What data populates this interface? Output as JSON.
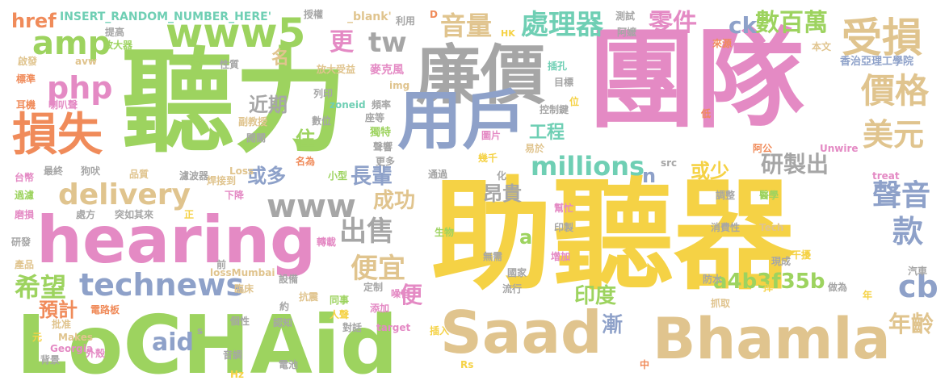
{
  "palette": {
    "green": "#9dd35f",
    "gold": "#f5d245",
    "pink": "#e48ac4",
    "tan": "#e0c48e",
    "blue": "#8ea1c9",
    "gray": "#a6a6a6",
    "orange": "#f08b5a",
    "teal": "#6fcfb4"
  },
  "words": [
    {
      "text": "團隊",
      "color": "pink"
    },
    {
      "text": "助聽器",
      "color": "gold"
    },
    {
      "text": "聽力",
      "color": "green"
    },
    {
      "text": "LoCHAid",
      "color": "green"
    },
    {
      "text": "hearing",
      "color": "pink"
    },
    {
      "text": "Saad",
      "color": "tan"
    },
    {
      "text": "Bhamla",
      "color": "tan"
    },
    {
      "text": "廉價",
      "color": "gray"
    },
    {
      "text": "用戶",
      "color": "blue"
    },
    {
      "text": "www5",
      "color": "green"
    },
    {
      "text": "損失",
      "color": "orange"
    },
    {
      "text": "amp",
      "color": "green"
    },
    {
      "text": "php",
      "color": "pink"
    },
    {
      "text": "delivery",
      "color": "tan"
    },
    {
      "text": "technews",
      "color": "blue"
    },
    {
      "text": "www",
      "color": "gray"
    },
    {
      "text": "受損",
      "color": "tan"
    },
    {
      "text": "價格",
      "color": "tan"
    },
    {
      "text": "美元",
      "color": "tan"
    },
    {
      "text": "tw",
      "color": "gray"
    },
    {
      "text": "音量",
      "color": "tan"
    },
    {
      "text": "處理器",
      "color": "teal"
    },
    {
      "text": "零件",
      "color": "pink"
    },
    {
      "text": "ck",
      "color": "blue"
    },
    {
      "text": "數百萬",
      "color": "green"
    },
    {
      "text": "聲音",
      "color": "blue"
    },
    {
      "text": "款",
      "color": "blue"
    },
    {
      "text": "cb",
      "color": "blue"
    },
    {
      "text": "年齡",
      "color": "tan"
    },
    {
      "text": "a4b3f35b",
      "color": "green"
    },
    {
      "text": "millions",
      "color": "teal"
    },
    {
      "text": "研製出",
      "color": "gray"
    },
    {
      "text": "出售",
      "color": "gray"
    },
    {
      "text": "便宜",
      "color": "tan"
    },
    {
      "text": "希望",
      "color": "green"
    },
    {
      "text": "預計",
      "color": "orange"
    },
    {
      "text": "aid",
      "color": "blue"
    },
    {
      "text": "成功",
      "color": "tan"
    },
    {
      "text": "昂貴",
      "color": "gray"
    },
    {
      "text": "印度",
      "color": "green"
    },
    {
      "text": "漸",
      "color": "blue"
    },
    {
      "text": "長輩",
      "color": "blue"
    },
    {
      "text": "或多",
      "color": "blue"
    },
    {
      "text": "或少",
      "color": "gold"
    },
    {
      "text": "工程",
      "color": "teal"
    },
    {
      "text": "近期",
      "color": "gray"
    },
    {
      "text": "更",
      "color": "pink"
    },
    {
      "text": "住",
      "color": "green"
    },
    {
      "text": "名",
      "color": "tan"
    },
    {
      "text": "便",
      "color": "pink"
    },
    {
      "text": "a",
      "color": "green"
    },
    {
      "text": "n",
      "color": "blue"
    },
    {
      "text": "href",
      "color": "orange"
    },
    {
      "text": "INSERT_RANDOM_NUMBER_HERE'",
      "color": "teal"
    },
    {
      "text": "_blank'",
      "color": "tan"
    },
    {
      "text": "授權",
      "color": "gray"
    },
    {
      "text": "利用",
      "color": "gray"
    },
    {
      "text": "D",
      "color": "orange"
    },
    {
      "text": "HK",
      "color": "gold"
    },
    {
      "text": "測試",
      "color": "gray"
    },
    {
      "text": "阿嬤",
      "color": "gray"
    },
    {
      "text": "來源",
      "color": "orange"
    },
    {
      "text": "本文",
      "color": "tan"
    },
    {
      "text": "香治亞理工學院",
      "color": "blue"
    },
    {
      "text": "提高",
      "color": "gray"
    },
    {
      "text": "放大器",
      "color": "green"
    },
    {
      "text": "啟發",
      "color": "tan"
    },
    {
      "text": "avw",
      "color": "tan"
    },
    {
      "text": "電子",
      "color": "green"
    },
    {
      "text": "性質",
      "color": "gray"
    },
    {
      "text": "放大受益",
      "color": "tan"
    },
    {
      "text": "麥克風",
      "color": "pink"
    },
    {
      "text": "插孔",
      "color": "teal"
    },
    {
      "text": "目標",
      "color": "gray"
    },
    {
      "text": "標準",
      "color": "orange"
    },
    {
      "text": "img",
      "color": "tan"
    },
    {
      "text": "耳機",
      "color": "orange"
    },
    {
      "text": "喇叭聲",
      "color": "pink"
    },
    {
      "text": "zoneid",
      "color": "teal"
    },
    {
      "text": "列印",
      "color": "gray"
    },
    {
      "text": "頻率",
      "color": "gray"
    },
    {
      "text": "控制鍵",
      "color": "gray"
    },
    {
      "text": "副教授",
      "color": "tan"
    },
    {
      "text": "座等",
      "color": "gray"
    },
    {
      "text": "數位",
      "color": "gray"
    },
    {
      "text": "開關",
      "color": "gray"
    },
    {
      "text": "獨特",
      "color": "green"
    },
    {
      "text": "聲響",
      "color": "gray"
    },
    {
      "text": "圖片",
      "color": "pink"
    },
    {
      "text": "幾千",
      "color": "gold"
    },
    {
      "text": "易於",
      "color": "tan"
    },
    {
      "text": "阿公",
      "color": "orange"
    },
    {
      "text": "Unwire",
      "color": "pink"
    },
    {
      "text": "低",
      "color": "orange"
    },
    {
      "text": "台幣",
      "color": "pink"
    },
    {
      "text": "最終",
      "color": "gray"
    },
    {
      "text": "狗吠",
      "color": "gray"
    },
    {
      "text": "品質",
      "color": "tan"
    },
    {
      "text": "濾波器",
      "color": "gray"
    },
    {
      "text": "Loss",
      "color": "tan"
    },
    {
      "text": "焊接到",
      "color": "tan"
    },
    {
      "text": "名為",
      "color": "orange"
    },
    {
      "text": "更多",
      "color": "gray"
    },
    {
      "text": "小型",
      "color": "green"
    },
    {
      "text": "通過",
      "color": "gray"
    },
    {
      "text": "化",
      "color": "gray"
    },
    {
      "text": "src",
      "color": "gray"
    },
    {
      "text": "treat",
      "color": "pink"
    },
    {
      "text": "過濾",
      "color": "green"
    },
    {
      "text": "下降",
      "color": "pink"
    },
    {
      "text": "調整",
      "color": "gray"
    },
    {
      "text": "醫學",
      "color": "green"
    },
    {
      "text": "磨損",
      "color": "pink"
    },
    {
      "text": "處方",
      "color": "gray"
    },
    {
      "text": "突如其來",
      "color": "gray"
    },
    {
      "text": "正",
      "color": "gold"
    },
    {
      "text": "高",
      "color": "gold"
    },
    {
      "text": "幫忙",
      "color": "pink"
    },
    {
      "text": "印製",
      "color": "gray"
    },
    {
      "text": "半",
      "color": "gold"
    },
    {
      "text": "消費性",
      "color": "gray"
    },
    {
      "text": "Tech",
      "color": "tan"
    },
    {
      "text": "研發",
      "color": "gray"
    },
    {
      "text": "生物",
      "color": "green"
    },
    {
      "text": "轉載",
      "color": "pink"
    },
    {
      "text": "產品",
      "color": "tan"
    },
    {
      "text": "無需",
      "color": "gray"
    },
    {
      "text": "增加",
      "color": "pink"
    },
    {
      "text": "能力",
      "color": "gold"
    },
    {
      "text": "國家",
      "color": "gray"
    },
    {
      "text": "流行",
      "color": "gray"
    },
    {
      "text": "干擾",
      "color": "gold"
    },
    {
      "text": "現成",
      "color": "gray"
    },
    {
      "text": "前",
      "color": "gray"
    },
    {
      "text": "lossMumbai",
      "color": "tan"
    },
    {
      "text": "設備",
      "color": "gray"
    },
    {
      "text": "定制",
      "color": "gray"
    },
    {
      "text": "噪音",
      "color": "pink"
    },
    {
      "text": "防水",
      "color": "gray"
    },
    {
      "text": "汽車",
      "color": "gray"
    },
    {
      "text": "掉",
      "color": "gold"
    },
    {
      "text": "做為",
      "color": "gray"
    },
    {
      "text": "臨床",
      "color": "tan"
    },
    {
      "text": "抗震",
      "color": "tan"
    },
    {
      "text": "同事",
      "color": "green"
    },
    {
      "text": "添加",
      "color": "pink"
    },
    {
      "text": "抓取",
      "color": "tan"
    },
    {
      "text": "電路板",
      "color": "orange"
    },
    {
      "text": "約",
      "color": "gray"
    },
    {
      "text": "人聲",
      "color": "gold"
    },
    {
      "text": "年",
      "color": "gold"
    },
    {
      "text": "批准",
      "color": "tan"
    },
    {
      "text": "個性",
      "color": "gray"
    },
    {
      "text": "認知",
      "color": "gray"
    },
    {
      "text": "對話",
      "color": "gray"
    },
    {
      "text": "target",
      "color": "pink"
    },
    {
      "text": "插入",
      "color": "gold"
    },
    {
      "text": "Makes",
      "color": "tan"
    },
    {
      "text": "Georgia",
      "color": "pink"
    },
    {
      "text": "背景",
      "color": "gray"
    },
    {
      "text": "外殼",
      "color": "pink"
    },
    {
      "text": "音調",
      "color": "gray"
    },
    {
      "text": "電池",
      "color": "gray"
    },
    {
      "text": "Hz",
      "color": "gold"
    },
    {
      "text": "Rs",
      "color": "gold"
    },
    {
      "text": "中",
      "color": "orange"
    },
    {
      "text": "元",
      "color": "gold"
    },
    {
      "text": "s",
      "color": "gray"
    },
    {
      "text": "位",
      "color": "gold"
    }
  ]
}
